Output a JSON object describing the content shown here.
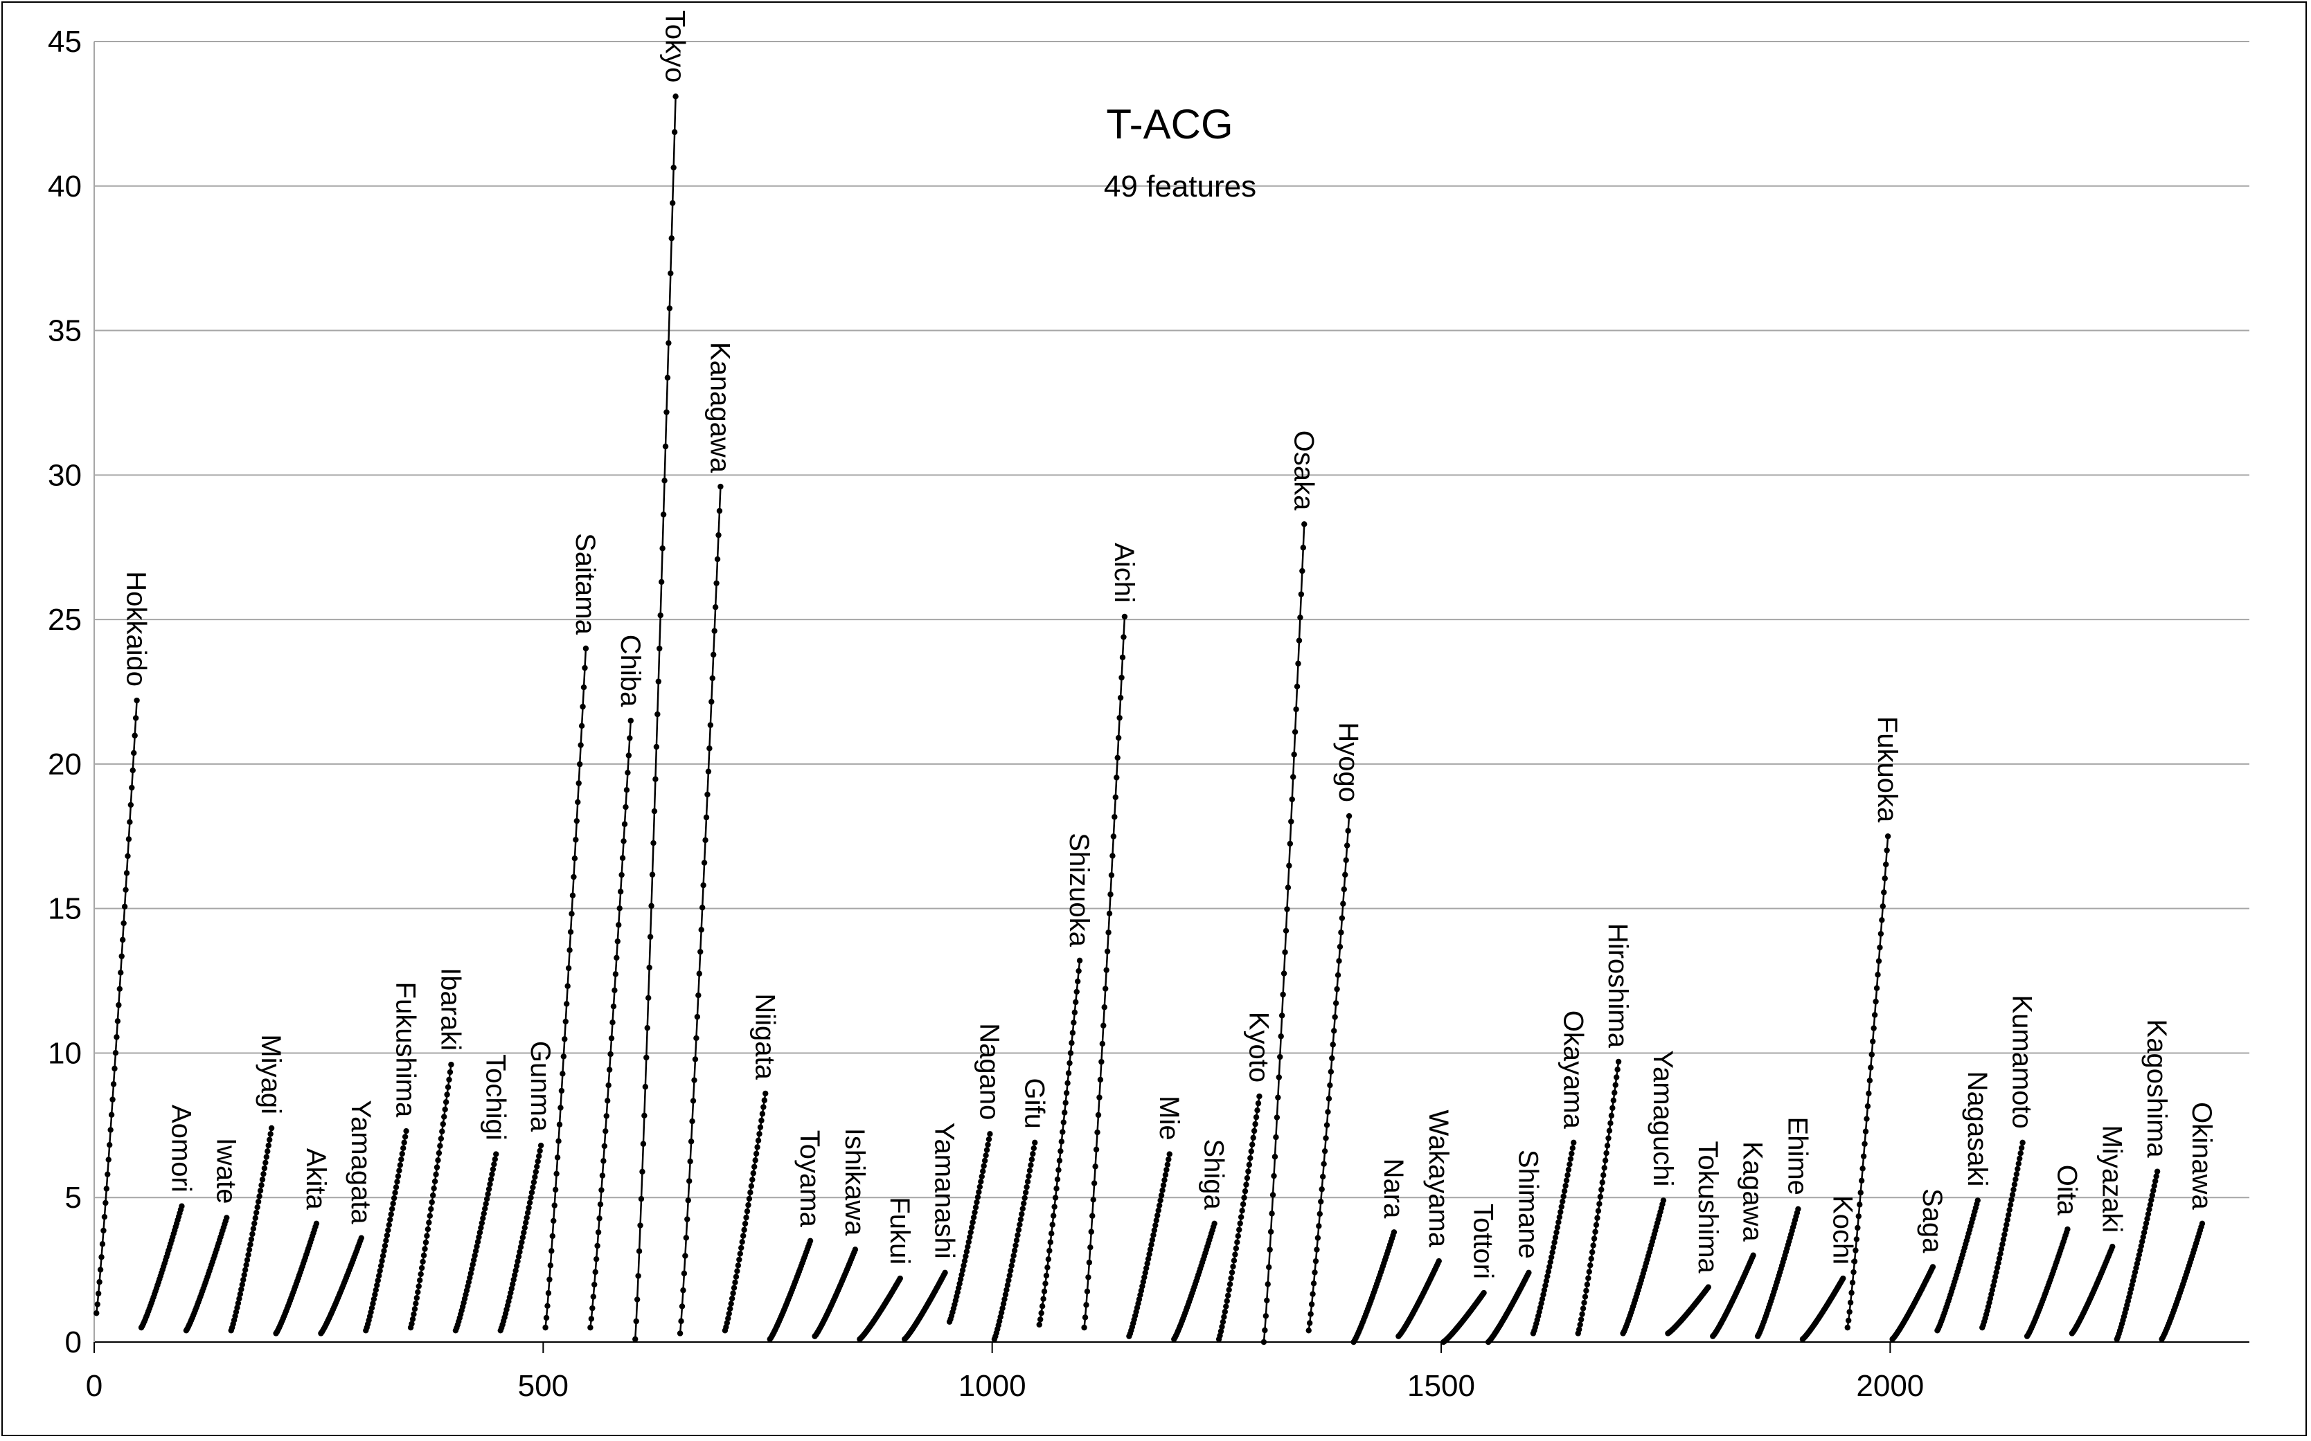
{
  "chart_data": {
    "type": "scatter",
    "title": "T-ACG",
    "subtitle": "49 features",
    "xlabel": "",
    "ylabel": "",
    "xlim": [
      0,
      2400
    ],
    "ylim": [
      0,
      45
    ],
    "xticks": [
      0,
      500,
      1000,
      1500,
      2000
    ],
    "yticks": [
      0,
      5,
      10,
      15,
      20,
      25,
      30,
      35,
      40,
      45
    ],
    "grid": "horizontal",
    "legend": "none",
    "colors": {
      "line": "#000000",
      "grid": "#a6a6a6",
      "axis": "#000000"
    },
    "note_format": "each series is a connected line of markers rising from y_start to y_end over x_start..x_end",
    "series": [
      {
        "name": "Hokkaido",
        "x_start": 0,
        "x_end": 50,
        "y_start": 1.0,
        "y_end": 22.2
      },
      {
        "name": "Aomori",
        "x_start": 50,
        "x_end": 100,
        "y_start": 0.5,
        "y_end": 4.7
      },
      {
        "name": "Iwate",
        "x_start": 100,
        "x_end": 150,
        "y_start": 0.4,
        "y_end": 4.3
      },
      {
        "name": "Miyagi",
        "x_start": 150,
        "x_end": 200,
        "y_start": 0.4,
        "y_end": 7.4
      },
      {
        "name": "Akita",
        "x_start": 200,
        "x_end": 250,
        "y_start": 0.3,
        "y_end": 4.1
      },
      {
        "name": "Yamagata",
        "x_start": 250,
        "x_end": 300,
        "y_start": 0.3,
        "y_end": 3.6
      },
      {
        "name": "Fukushima",
        "x_start": 300,
        "x_end": 350,
        "y_start": 0.4,
        "y_end": 7.3
      },
      {
        "name": "Ibaraki",
        "x_start": 350,
        "x_end": 400,
        "y_start": 0.5,
        "y_end": 9.6
      },
      {
        "name": "Tochigi",
        "x_start": 400,
        "x_end": 450,
        "y_start": 0.4,
        "y_end": 6.5
      },
      {
        "name": "Gunma",
        "x_start": 450,
        "x_end": 500,
        "y_start": 0.4,
        "y_end": 6.8
      },
      {
        "name": "Saitama",
        "x_start": 500,
        "x_end": 550,
        "y_start": 0.5,
        "y_end": 24.0
      },
      {
        "name": "Chiba",
        "x_start": 550,
        "x_end": 600,
        "y_start": 0.5,
        "y_end": 21.5
      },
      {
        "name": "Tokyo",
        "x_start": 600,
        "x_end": 650,
        "y_start": 0.1,
        "y_end": 43.1
      },
      {
        "name": "Kanagawa",
        "x_start": 650,
        "x_end": 700,
        "y_start": 0.3,
        "y_end": 29.6
      },
      {
        "name": "Niigata",
        "x_start": 700,
        "x_end": 750,
        "y_start": 0.4,
        "y_end": 8.6
      },
      {
        "name": "Toyama",
        "x_start": 750,
        "x_end": 800,
        "y_start": 0.1,
        "y_end": 3.5
      },
      {
        "name": "Ishikawa",
        "x_start": 800,
        "x_end": 850,
        "y_start": 0.2,
        "y_end": 3.2
      },
      {
        "name": "Fukui",
        "x_start": 850,
        "x_end": 900,
        "y_start": 0.1,
        "y_end": 2.2
      },
      {
        "name": "Yamanashi",
        "x_start": 900,
        "x_end": 950,
        "y_start": 0.1,
        "y_end": 2.4
      },
      {
        "name": "Nagano",
        "x_start": 950,
        "x_end": 1000,
        "y_start": 0.7,
        "y_end": 7.2
      },
      {
        "name": "Gifu",
        "x_start": 1000,
        "x_end": 1050,
        "y_start": 0.1,
        "y_end": 6.9
      },
      {
        "name": "Shizuoka",
        "x_start": 1050,
        "x_end": 1100,
        "y_start": 0.6,
        "y_end": 13.2
      },
      {
        "name": "Aichi",
        "x_start": 1100,
        "x_end": 1150,
        "y_start": 0.5,
        "y_end": 25.1
      },
      {
        "name": "Mie",
        "x_start": 1150,
        "x_end": 1200,
        "y_start": 0.2,
        "y_end": 6.5
      },
      {
        "name": "Shiga",
        "x_start": 1200,
        "x_end": 1250,
        "y_start": 0.1,
        "y_end": 4.1
      },
      {
        "name": "Kyoto",
        "x_start": 1250,
        "x_end": 1300,
        "y_start": 0.1,
        "y_end": 8.5
      },
      {
        "name": "Osaka",
        "x_start": 1300,
        "x_end": 1350,
        "y_start": 0.0,
        "y_end": 28.3
      },
      {
        "name": "Hyogo",
        "x_start": 1350,
        "x_end": 1400,
        "y_start": 0.4,
        "y_end": 18.2
      },
      {
        "name": "Nara",
        "x_start": 1400,
        "x_end": 1450,
        "y_start": 0.0,
        "y_end": 3.8
      },
      {
        "name": "Wakayama",
        "x_start": 1450,
        "x_end": 1500,
        "y_start": 0.2,
        "y_end": 2.8
      },
      {
        "name": "Tottori",
        "x_start": 1500,
        "x_end": 1550,
        "y_start": 0.0,
        "y_end": 1.7
      },
      {
        "name": "Shimane",
        "x_start": 1550,
        "x_end": 1600,
        "y_start": 0.0,
        "y_end": 2.4
      },
      {
        "name": "Okayama",
        "x_start": 1600,
        "x_end": 1650,
        "y_start": 0.3,
        "y_end": 6.9
      },
      {
        "name": "Hiroshima",
        "x_start": 1650,
        "x_end": 1700,
        "y_start": 0.3,
        "y_end": 9.7
      },
      {
        "name": "Yamaguchi",
        "x_start": 1700,
        "x_end": 1750,
        "y_start": 0.3,
        "y_end": 4.9
      },
      {
        "name": "Tokushima",
        "x_start": 1750,
        "x_end": 1800,
        "y_start": 0.3,
        "y_end": 1.9
      },
      {
        "name": "Kagawa",
        "x_start": 1800,
        "x_end": 1850,
        "y_start": 0.2,
        "y_end": 3.0
      },
      {
        "name": "Ehime",
        "x_start": 1850,
        "x_end": 1900,
        "y_start": 0.2,
        "y_end": 4.6
      },
      {
        "name": "Kochi",
        "x_start": 1900,
        "x_end": 1950,
        "y_start": 0.1,
        "y_end": 2.2
      },
      {
        "name": "Fukuoka",
        "x_start": 1950,
        "x_end": 2000,
        "y_start": 0.5,
        "y_end": 17.5
      },
      {
        "name": "Saga",
        "x_start": 2000,
        "x_end": 2050,
        "y_start": 0.1,
        "y_end": 2.6
      },
      {
        "name": "Nagasaki",
        "x_start": 2050,
        "x_end": 2100,
        "y_start": 0.4,
        "y_end": 4.9
      },
      {
        "name": "Kumamoto",
        "x_start": 2100,
        "x_end": 2150,
        "y_start": 0.5,
        "y_end": 6.9
      },
      {
        "name": "Oita",
        "x_start": 2150,
        "x_end": 2200,
        "y_start": 0.2,
        "y_end": 3.9
      },
      {
        "name": "Miyazaki",
        "x_start": 2200,
        "x_end": 2250,
        "y_start": 0.3,
        "y_end": 3.3
      },
      {
        "name": "Kagoshima",
        "x_start": 2250,
        "x_end": 2300,
        "y_start": 0.1,
        "y_end": 5.9
      },
      {
        "name": "Okinawa",
        "x_start": 2300,
        "x_end": 2350,
        "y_start": 0.1,
        "y_end": 4.1
      }
    ]
  }
}
